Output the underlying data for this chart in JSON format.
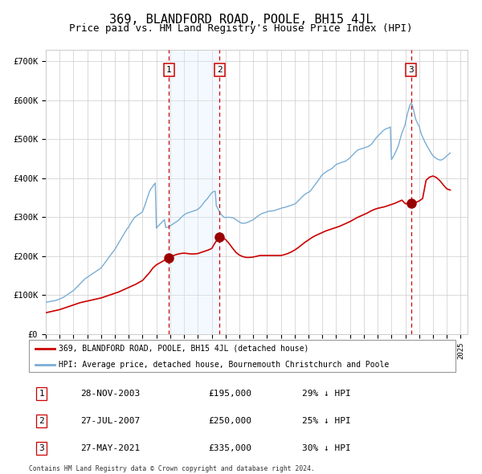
{
  "title": "369, BLANDFORD ROAD, POOLE, BH15 4JL",
  "subtitle": "Price paid vs. HM Land Registry's House Price Index (HPI)",
  "title_fontsize": 11,
  "subtitle_fontsize": 9,
  "background_color": "#ffffff",
  "plot_bg_color": "#ffffff",
  "grid_color": "#cccccc",
  "ylabel_ticks": [
    "£0",
    "£100K",
    "£200K",
    "£300K",
    "£400K",
    "£500K",
    "£600K",
    "£700K"
  ],
  "ytick_values": [
    0,
    100000,
    200000,
    300000,
    400000,
    500000,
    600000,
    700000
  ],
  "ylim": [
    0,
    730000
  ],
  "xlim_start": 1995.0,
  "xlim_end": 2025.5,
  "purchase_dates": [
    2003.91,
    2007.57,
    2021.41
  ],
  "purchase_prices": [
    195000,
    250000,
    335000
  ],
  "purchase_labels": [
    "1",
    "2",
    "3"
  ],
  "red_line_color": "#cc0000",
  "blue_line_color": "#7aadd4",
  "shade_color": "#ddeeff",
  "dashed_line_color": "#cc0000",
  "marker_color": "#990000",
  "marker_size": 8,
  "legend_red_label": "369, BLANDFORD ROAD, POOLE, BH15 4JL (detached house)",
  "legend_blue_label": "HPI: Average price, detached house, Bournemouth Christchurch and Poole",
  "table_entries": [
    {
      "num": "1",
      "date": "28-NOV-2003",
      "price": "£195,000",
      "hpi": "29% ↓ HPI"
    },
    {
      "num": "2",
      "date": "27-JUL-2007",
      "price": "£250,000",
      "hpi": "25% ↓ HPI"
    },
    {
      "num": "3",
      "date": "27-MAY-2021",
      "price": "£335,000",
      "hpi": "30% ↓ HPI"
    }
  ],
  "footnote": "Contains HM Land Registry data © Crown copyright and database right 2024.\nThis data is licensed under the Open Government Licence v3.0.",
  "hpi_years": [
    1995.0,
    1995.083,
    1995.167,
    1995.25,
    1995.333,
    1995.417,
    1995.5,
    1995.583,
    1995.667,
    1995.75,
    1995.833,
    1995.917,
    1996.0,
    1996.083,
    1996.167,
    1996.25,
    1996.333,
    1996.417,
    1996.5,
    1996.583,
    1996.667,
    1996.75,
    1996.833,
    1996.917,
    1997.0,
    1997.083,
    1997.167,
    1997.25,
    1997.333,
    1997.417,
    1997.5,
    1997.583,
    1997.667,
    1997.75,
    1997.833,
    1997.917,
    1998.0,
    1998.083,
    1998.167,
    1998.25,
    1998.333,
    1998.417,
    1998.5,
    1998.583,
    1998.667,
    1998.75,
    1998.833,
    1998.917,
    1999.0,
    1999.083,
    1999.167,
    1999.25,
    1999.333,
    1999.417,
    1999.5,
    1999.583,
    1999.667,
    1999.75,
    1999.833,
    1999.917,
    2000.0,
    2000.083,
    2000.167,
    2000.25,
    2000.333,
    2000.417,
    2000.5,
    2000.583,
    2000.667,
    2000.75,
    2000.833,
    2000.917,
    2001.0,
    2001.083,
    2001.167,
    2001.25,
    2001.333,
    2001.417,
    2001.5,
    2001.583,
    2001.667,
    2001.75,
    2001.833,
    2001.917,
    2002.0,
    2002.083,
    2002.167,
    2002.25,
    2002.333,
    2002.417,
    2002.5,
    2002.583,
    2002.667,
    2002.75,
    2002.833,
    2002.917,
    2003.0,
    2003.083,
    2003.167,
    2003.25,
    2003.333,
    2003.417,
    2003.5,
    2003.583,
    2003.667,
    2003.75,
    2003.833,
    2003.917,
    2004.0,
    2004.083,
    2004.167,
    2004.25,
    2004.333,
    2004.417,
    2004.5,
    2004.583,
    2004.667,
    2004.75,
    2004.833,
    2004.917,
    2005.0,
    2005.083,
    2005.167,
    2005.25,
    2005.333,
    2005.417,
    2005.5,
    2005.583,
    2005.667,
    2005.75,
    2005.833,
    2005.917,
    2006.0,
    2006.083,
    2006.167,
    2006.25,
    2006.333,
    2006.417,
    2006.5,
    2006.583,
    2006.667,
    2006.75,
    2006.833,
    2006.917,
    2007.0,
    2007.083,
    2007.167,
    2007.25,
    2007.333,
    2007.417,
    2007.5,
    2007.583,
    2007.667,
    2007.75,
    2007.833,
    2007.917,
    2008.0,
    2008.083,
    2008.167,
    2008.25,
    2008.333,
    2008.417,
    2008.5,
    2008.583,
    2008.667,
    2008.75,
    2008.833,
    2008.917,
    2009.0,
    2009.083,
    2009.167,
    2009.25,
    2009.333,
    2009.417,
    2009.5,
    2009.583,
    2009.667,
    2009.75,
    2009.833,
    2009.917,
    2010.0,
    2010.083,
    2010.167,
    2010.25,
    2010.333,
    2010.417,
    2010.5,
    2010.583,
    2010.667,
    2010.75,
    2010.833,
    2010.917,
    2011.0,
    2011.083,
    2011.167,
    2011.25,
    2011.333,
    2011.417,
    2011.5,
    2011.583,
    2011.667,
    2011.75,
    2011.833,
    2011.917,
    2012.0,
    2012.083,
    2012.167,
    2012.25,
    2012.333,
    2012.417,
    2012.5,
    2012.583,
    2012.667,
    2012.75,
    2012.833,
    2012.917,
    2013.0,
    2013.083,
    2013.167,
    2013.25,
    2013.333,
    2013.417,
    2013.5,
    2013.583,
    2013.667,
    2013.75,
    2013.833,
    2013.917,
    2014.0,
    2014.083,
    2014.167,
    2014.25,
    2014.333,
    2014.417,
    2014.5,
    2014.583,
    2014.667,
    2014.75,
    2014.833,
    2014.917,
    2015.0,
    2015.083,
    2015.167,
    2015.25,
    2015.333,
    2015.417,
    2015.5,
    2015.583,
    2015.667,
    2015.75,
    2015.833,
    2015.917,
    2016.0,
    2016.083,
    2016.167,
    2016.25,
    2016.333,
    2016.417,
    2016.5,
    2016.583,
    2016.667,
    2016.75,
    2016.833,
    2016.917,
    2017.0,
    2017.083,
    2017.167,
    2017.25,
    2017.333,
    2017.417,
    2017.5,
    2017.583,
    2017.667,
    2017.75,
    2017.833,
    2017.917,
    2018.0,
    2018.083,
    2018.167,
    2018.25,
    2018.333,
    2018.417,
    2018.5,
    2018.583,
    2018.667,
    2018.75,
    2018.833,
    2018.917,
    2019.0,
    2019.083,
    2019.167,
    2019.25,
    2019.333,
    2019.417,
    2019.5,
    2019.583,
    2019.667,
    2019.75,
    2019.833,
    2019.917,
    2020.0,
    2020.083,
    2020.167,
    2020.25,
    2020.333,
    2020.417,
    2020.5,
    2020.583,
    2020.667,
    2020.75,
    2020.833,
    2020.917,
    2021.0,
    2021.083,
    2021.167,
    2021.25,
    2021.333,
    2021.417,
    2021.5,
    2021.583,
    2021.667,
    2021.75,
    2021.833,
    2021.917,
    2022.0,
    2022.083,
    2022.167,
    2022.25,
    2022.333,
    2022.417,
    2022.5,
    2022.583,
    2022.667,
    2022.75,
    2022.833,
    2022.917,
    2023.0,
    2023.083,
    2023.167,
    2023.25,
    2023.333,
    2023.417,
    2023.5,
    2023.583,
    2023.667,
    2023.75,
    2023.833,
    2023.917,
    2024.0,
    2024.083,
    2024.167,
    2024.25
  ],
  "hpi_values": [
    82000,
    82500,
    83000,
    83500,
    84000,
    84500,
    85000,
    85500,
    86000,
    87000,
    88000,
    89000,
    90000,
    91500,
    93000,
    94500,
    96000,
    98000,
    100000,
    102000,
    104000,
    106000,
    108000,
    110000,
    112000,
    115000,
    118000,
    121000,
    124000,
    127000,
    130000,
    133000,
    136000,
    139000,
    142000,
    144000,
    146000,
    148000,
    150000,
    152000,
    154000,
    156000,
    158000,
    160000,
    162000,
    164000,
    166000,
    168000,
    170000,
    174000,
    178000,
    182000,
    186000,
    190000,
    194000,
    198000,
    202000,
    206000,
    210000,
    214000,
    218000,
    223000,
    228000,
    233000,
    238000,
    243000,
    248000,
    253000,
    258000,
    263000,
    268000,
    272000,
    276000,
    281000,
    286000,
    291000,
    295000,
    299000,
    302000,
    304000,
    306000,
    308000,
    310000,
    312000,
    315000,
    323000,
    331000,
    340000,
    349000,
    358000,
    366000,
    372000,
    376000,
    380000,
    384000,
    388000,
    272000,
    276000,
    279000,
    282000,
    285000,
    288000,
    291000,
    294000,
    274000,
    274000,
    275000,
    276000,
    278000,
    280000,
    282000,
    284000,
    286000,
    288000,
    290000,
    292000,
    295000,
    298000,
    301000,
    304000,
    306000,
    308000,
    310000,
    311000,
    312000,
    313000,
    314000,
    315000,
    316000,
    317000,
    318000,
    319000,
    321000,
    323000,
    326000,
    329000,
    333000,
    337000,
    341000,
    344000,
    347000,
    351000,
    355000,
    359000,
    363000,
    365000,
    366000,
    367000,
    330000,
    324000,
    318000,
    313000,
    308000,
    305000,
    302000,
    300000,
    299000,
    300000,
    300000,
    300000,
    300000,
    299000,
    299000,
    298000,
    296000,
    294000,
    292000,
    290000,
    288000,
    286000,
    285000,
    285000,
    285000,
    285000,
    286000,
    287000,
    288000,
    290000,
    291000,
    292000,
    294000,
    296000,
    298000,
    301000,
    303000,
    305000,
    307000,
    309000,
    310000,
    311000,
    312000,
    313000,
    314000,
    315000,
    316000,
    316000,
    316000,
    317000,
    317000,
    318000,
    319000,
    320000,
    321000,
    322000,
    323000,
    324000,
    325000,
    325000,
    326000,
    327000,
    328000,
    329000,
    330000,
    331000,
    332000,
    333000,
    334000,
    336000,
    339000,
    342000,
    345000,
    348000,
    351000,
    354000,
    357000,
    359000,
    361000,
    363000,
    364000,
    366000,
    369000,
    373000,
    377000,
    381000,
    385000,
    389000,
    393000,
    397000,
    401000,
    406000,
    409000,
    412000,
    414000,
    416000,
    418000,
    420000,
    421000,
    423000,
    425000,
    427000,
    430000,
    433000,
    435000,
    437000,
    438000,
    439000,
    440000,
    441000,
    442000,
    443000,
    444000,
    446000,
    448000,
    450000,
    453000,
    456000,
    459000,
    462000,
    465000,
    468000,
    471000,
    473000,
    474000,
    475000,
    476000,
    477000,
    478000,
    479000,
    480000,
    481000,
    482000,
    484000,
    486000,
    489000,
    493000,
    497000,
    501000,
    505000,
    508000,
    511000,
    514000,
    517000,
    520000,
    523000,
    525000,
    527000,
    528000,
    529000,
    530000,
    532000,
    448000,
    453000,
    458000,
    464000,
    470000,
    477000,
    484000,
    495000,
    506000,
    516000,
    524000,
    531000,
    540000,
    555000,
    568000,
    578000,
    588000,
    593000,
    588000,
    577000,
    564000,
    552000,
    545000,
    539000,
    534000,
    523000,
    513000,
    506000,
    500000,
    493000,
    488000,
    482000,
    477000,
    472000,
    467000,
    462000,
    458000,
    455000,
    453000,
    451000,
    449000,
    448000,
    447000,
    447000,
    448000,
    450000,
    452000,
    455000,
    458000,
    460000,
    463000,
    465000
  ],
  "red_years": [
    1995.0,
    1995.25,
    1995.5,
    1995.75,
    1996.0,
    1996.25,
    1996.5,
    1996.75,
    1997.0,
    1997.25,
    1997.5,
    1997.75,
    1998.0,
    1998.25,
    1998.5,
    1998.75,
    1999.0,
    1999.25,
    1999.5,
    1999.75,
    2000.0,
    2000.25,
    2000.5,
    2000.75,
    2001.0,
    2001.25,
    2001.5,
    2001.75,
    2002.0,
    2002.25,
    2002.5,
    2002.75,
    2003.0,
    2003.25,
    2003.5,
    2003.75,
    2003.91,
    2004.0,
    2004.25,
    2004.5,
    2004.75,
    2005.0,
    2005.25,
    2005.5,
    2005.75,
    2006.0,
    2006.25,
    2006.5,
    2006.75,
    2007.0,
    2007.25,
    2007.57,
    2007.75,
    2008.0,
    2008.25,
    2008.5,
    2008.75,
    2009.0,
    2009.25,
    2009.5,
    2009.75,
    2010.0,
    2010.25,
    2010.5,
    2010.75,
    2011.0,
    2011.25,
    2011.5,
    2011.75,
    2012.0,
    2012.25,
    2012.5,
    2012.75,
    2013.0,
    2013.25,
    2013.5,
    2013.75,
    2014.0,
    2014.25,
    2014.5,
    2014.75,
    2015.0,
    2015.25,
    2015.5,
    2015.75,
    2016.0,
    2016.25,
    2016.5,
    2016.75,
    2017.0,
    2017.25,
    2017.5,
    2017.75,
    2018.0,
    2018.25,
    2018.5,
    2018.75,
    2019.0,
    2019.25,
    2019.5,
    2019.75,
    2020.0,
    2020.25,
    2020.5,
    2020.75,
    2021.0,
    2021.25,
    2021.41,
    2021.5,
    2021.75,
    2022.0,
    2022.25,
    2022.5,
    2022.75,
    2023.0,
    2023.25,
    2023.5,
    2023.75,
    2024.0,
    2024.25
  ],
  "red_values": [
    55000,
    57000,
    59000,
    61000,
    63000,
    66000,
    69000,
    72000,
    75000,
    78000,
    81000,
    83000,
    85000,
    87000,
    89000,
    91000,
    93000,
    96000,
    99000,
    102000,
    105000,
    108000,
    112000,
    116000,
    120000,
    124000,
    128000,
    133000,
    138000,
    148000,
    158000,
    170000,
    178000,
    183000,
    188000,
    193000,
    195000,
    198000,
    202000,
    205000,
    207000,
    208000,
    207000,
    206000,
    206000,
    207000,
    210000,
    213000,
    216000,
    220000,
    235000,
    250000,
    248000,
    243000,
    233000,
    221000,
    210000,
    203000,
    199000,
    197000,
    197000,
    198000,
    200000,
    202000,
    202000,
    202000,
    202000,
    202000,
    202000,
    202000,
    204000,
    207000,
    211000,
    216000,
    222000,
    229000,
    236000,
    242000,
    248000,
    253000,
    257000,
    261000,
    265000,
    268000,
    271000,
    274000,
    277000,
    281000,
    285000,
    289000,
    294000,
    299000,
    303000,
    307000,
    311000,
    316000,
    320000,
    323000,
    325000,
    327000,
    330000,
    333000,
    336000,
    340000,
    344000,
    335000,
    335000,
    335000,
    336000,
    338000,
    342000,
    348000,
    395000,
    403000,
    406000,
    402000,
    394000,
    383000,
    373000,
    370000
  ]
}
